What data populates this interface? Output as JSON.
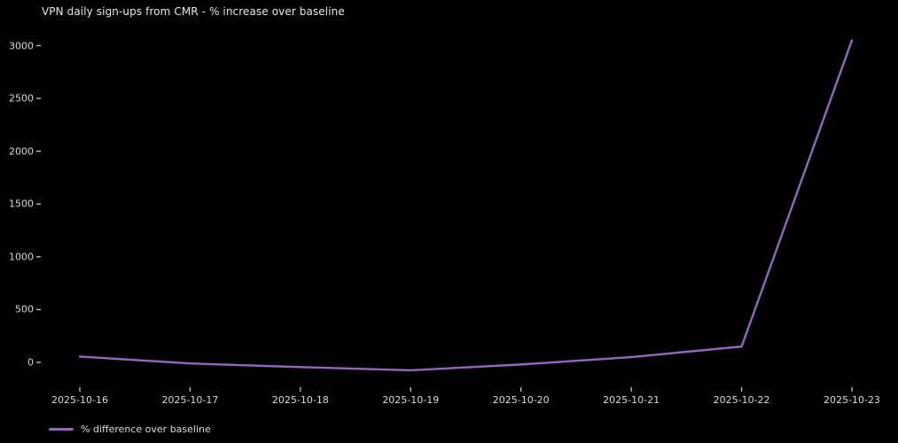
{
  "chart_data": {
    "type": "line",
    "title": "VPN daily sign-ups from CMR - % increase over baseline",
    "xlabel": "",
    "ylabel": "",
    "x": [
      "2025-10-16",
      "2025-10-17",
      "2025-10-18",
      "2025-10-19",
      "2025-10-20",
      "2025-10-21",
      "2025-10-22",
      "2025-10-23"
    ],
    "series": [
      {
        "name": "% difference over baseline",
        "values": [
          55,
          -10,
          -45,
          -75,
          -20,
          50,
          150,
          3050
        ],
        "color": "#9467bd"
      }
    ],
    "yticks": [
      0,
      500,
      1000,
      1500,
      2000,
      2500,
      3000
    ],
    "ylim": [
      -230,
      3210
    ],
    "grid": false,
    "legend_position": "lower-left-outside",
    "legend": [
      "% difference over baseline"
    ],
    "background_color": "#000000",
    "text_color": "#d9d9d9",
    "tick_mark_color": "#c9c9c9",
    "line_color": "#9467bd"
  }
}
